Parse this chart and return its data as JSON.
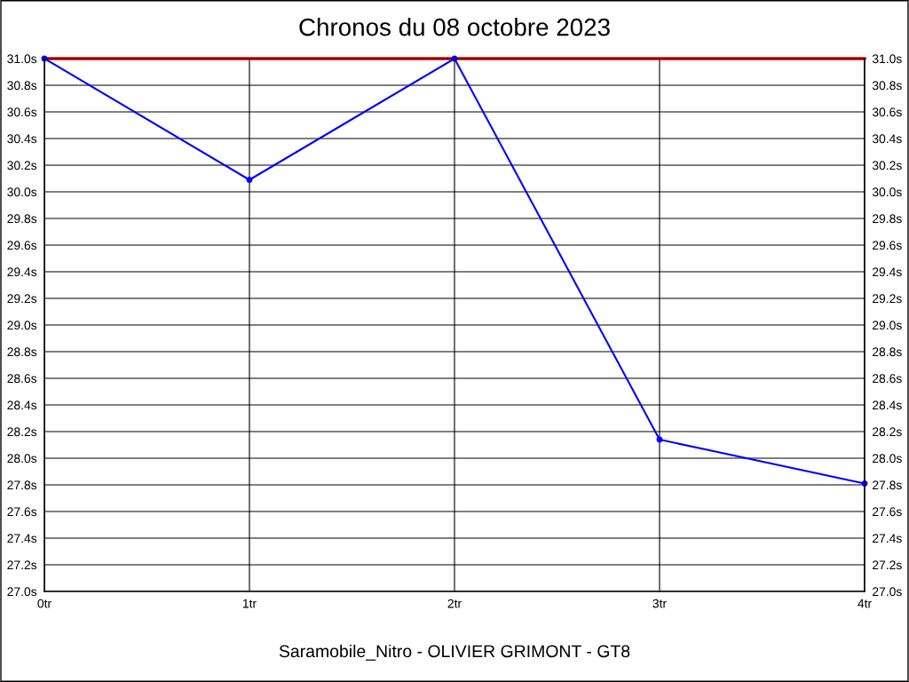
{
  "chart_data": {
    "type": "line",
    "title": "Chronos du 08 octobre 2023",
    "xlabel": "Saramobile_Nitro - OLIVIER GRIMONT - GT8",
    "x": [
      0,
      1,
      2,
      3,
      4
    ],
    "series": [
      {
        "color": "#0000ff",
        "values": [
          31.0,
          30.09,
          31.0,
          28.14,
          27.81
        ]
      }
    ],
    "xlim": [
      0,
      4
    ],
    "xticks": [
      {
        "value": 0,
        "label": "0tr"
      },
      {
        "value": 1,
        "label": "1tr"
      },
      {
        "value": 2,
        "label": "2tr"
      },
      {
        "value": 3,
        "label": "3tr"
      },
      {
        "value": 4,
        "label": "4tr"
      }
    ],
    "ylim": [
      27.0,
      31.0
    ],
    "yticks": [
      {
        "value": 27.0,
        "label": "27.0s"
      },
      {
        "value": 27.2,
        "label": "27.2s"
      },
      {
        "value": 27.4,
        "label": "27.4s"
      },
      {
        "value": 27.6,
        "label": "27.6s"
      },
      {
        "value": 27.8,
        "label": "27.8s"
      },
      {
        "value": 28.0,
        "label": "28.0s"
      },
      {
        "value": 28.2,
        "label": "28.2s"
      },
      {
        "value": 28.4,
        "label": "28.4s"
      },
      {
        "value": 28.6,
        "label": "28.6s"
      },
      {
        "value": 28.8,
        "label": "28.8s"
      },
      {
        "value": 29.0,
        "label": "29.0s"
      },
      {
        "value": 29.2,
        "label": "29.2s"
      },
      {
        "value": 29.4,
        "label": "29.4s"
      },
      {
        "value": 29.6,
        "label": "29.6s"
      },
      {
        "value": 29.8,
        "label": "29.8s"
      },
      {
        "value": 30.0,
        "label": "30.0s"
      },
      {
        "value": 30.2,
        "label": "30.2s"
      },
      {
        "value": 30.4,
        "label": "30.4s"
      },
      {
        "value": 30.6,
        "label": "30.6s"
      },
      {
        "value": 30.8,
        "label": "30.8s"
      },
      {
        "value": 31.0,
        "label": "31.0s"
      }
    ],
    "y2lim": [
      27.0,
      31.0
    ],
    "y2ticks": [
      {
        "value": 27.0,
        "label": "27.0s"
      },
      {
        "value": 27.2,
        "label": "27.2s"
      },
      {
        "value": 27.4,
        "label": "27.4s"
      },
      {
        "value": 27.6,
        "label": "27.6s"
      },
      {
        "value": 27.8,
        "label": "27.8s"
      },
      {
        "value": 28.0,
        "label": "28.0s"
      },
      {
        "value": 28.2,
        "label": "28.2s"
      },
      {
        "value": 28.4,
        "label": "28.4s"
      },
      {
        "value": 28.6,
        "label": "28.6s"
      },
      {
        "value": 28.8,
        "label": "28.8s"
      },
      {
        "value": 29.0,
        "label": "29.0s"
      },
      {
        "value": 29.2,
        "label": "29.2s"
      },
      {
        "value": 29.4,
        "label": "29.4s"
      },
      {
        "value": 29.6,
        "label": "29.6s"
      },
      {
        "value": 29.8,
        "label": "29.8s"
      },
      {
        "value": 30.0,
        "label": "30.0s"
      },
      {
        "value": 30.2,
        "label": "30.2s"
      },
      {
        "value": 30.4,
        "label": "30.4s"
      },
      {
        "value": 30.6,
        "label": "30.6s"
      },
      {
        "value": 30.8,
        "label": "30.8s"
      },
      {
        "value": 31.0,
        "label": "31.0s"
      }
    ],
    "ref_lines": [
      {
        "axis": "y",
        "value": 31.0,
        "color": "#ff0000"
      }
    ],
    "grid": true,
    "marker": "circle",
    "line_style": "solid"
  }
}
